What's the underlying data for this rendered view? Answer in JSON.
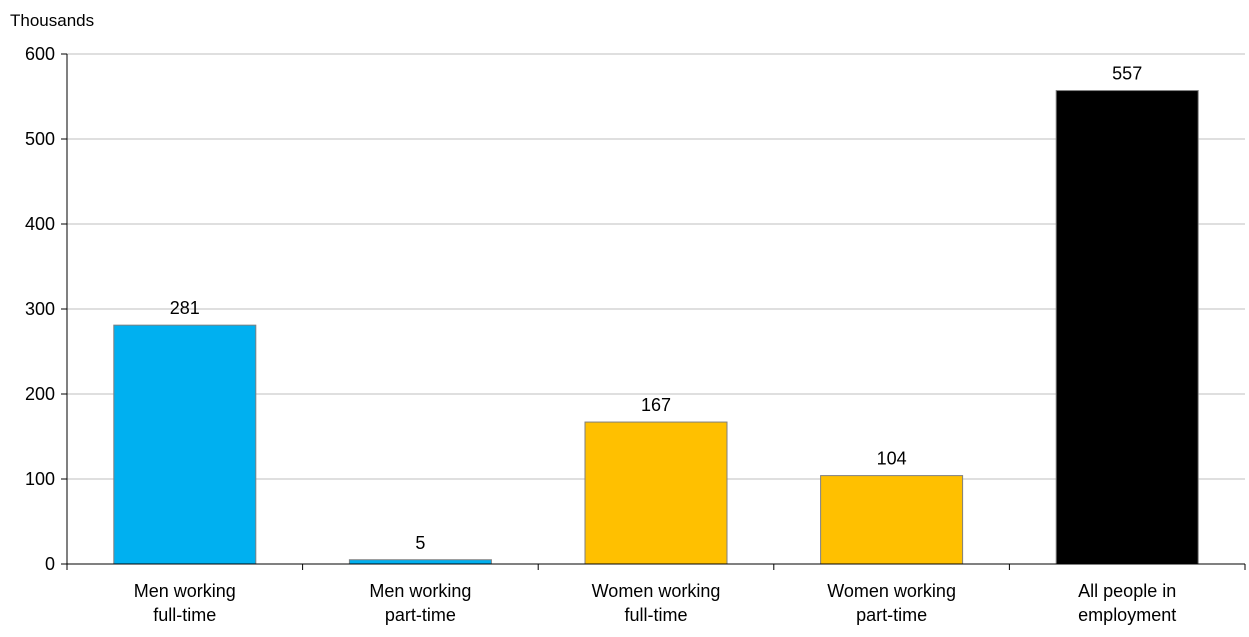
{
  "chart_data": {
    "type": "bar",
    "title": "",
    "xlabel": "",
    "ylabel": "Thousands",
    "ylim": [
      0,
      600
    ],
    "yticks": [
      0,
      100,
      200,
      300,
      400,
      500,
      600
    ],
    "grid": true,
    "legend": "none",
    "categories": [
      [
        "Men working",
        "full-time"
      ],
      [
        "Men working",
        "part-time"
      ],
      [
        "Women working",
        "full-time"
      ],
      [
        "Women working",
        "part-time"
      ],
      [
        "All people  in",
        "employment"
      ]
    ],
    "values": [
      281,
      5,
      167,
      104,
      557
    ],
    "data_labels": [
      "281",
      "5",
      "167",
      "104",
      "557"
    ],
    "colors": [
      "#00b0f0",
      "#00b0f0",
      "#ffc000",
      "#ffc000",
      "#000000"
    ],
    "gridline_color": "#bfbfbf",
    "axis_color": "#000000"
  }
}
